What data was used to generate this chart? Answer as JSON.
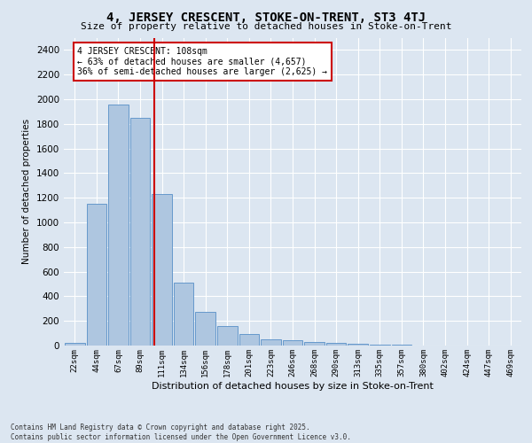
{
  "title": "4, JERSEY CRESCENT, STOKE-ON-TRENT, ST3 4TJ",
  "subtitle": "Size of property relative to detached houses in Stoke-on-Trent",
  "xlabel": "Distribution of detached houses by size in Stoke-on-Trent",
  "ylabel": "Number of detached properties",
  "bin_labels": [
    "22sqm",
    "44sqm",
    "67sqm",
    "89sqm",
    "111sqm",
    "134sqm",
    "156sqm",
    "178sqm",
    "201sqm",
    "223sqm",
    "246sqm",
    "268sqm",
    "290sqm",
    "313sqm",
    "335sqm",
    "357sqm",
    "380sqm",
    "402sqm",
    "424sqm",
    "447sqm",
    "469sqm"
  ],
  "bar_values": [
    25,
    1150,
    1960,
    1850,
    1230,
    510,
    270,
    155,
    90,
    50,
    40,
    30,
    20,
    15,
    8,
    5,
    3,
    2,
    2,
    1,
    1
  ],
  "bar_color": "#aec6e0",
  "bar_edge_color": "#6699cc",
  "background_color": "#dce6f1",
  "grid_color": "#ffffff",
  "ylim": [
    0,
    2500
  ],
  "yticks": [
    0,
    200,
    400,
    600,
    800,
    1000,
    1200,
    1400,
    1600,
    1800,
    2000,
    2200,
    2400
  ],
  "annotation_text": "4 JERSEY CRESCENT: 108sqm\n← 63% of detached houses are smaller (4,657)\n36% of semi-detached houses are larger (2,625) →",
  "annotation_box_color": "#ffffff",
  "annotation_box_edge_color": "#cc0000",
  "vline_color": "#cc0000",
  "footer_line1": "Contains HM Land Registry data © Crown copyright and database right 2025.",
  "footer_line2": "Contains public sector information licensed under the Open Government Licence v3.0.",
  "vline_x": 3.67
}
